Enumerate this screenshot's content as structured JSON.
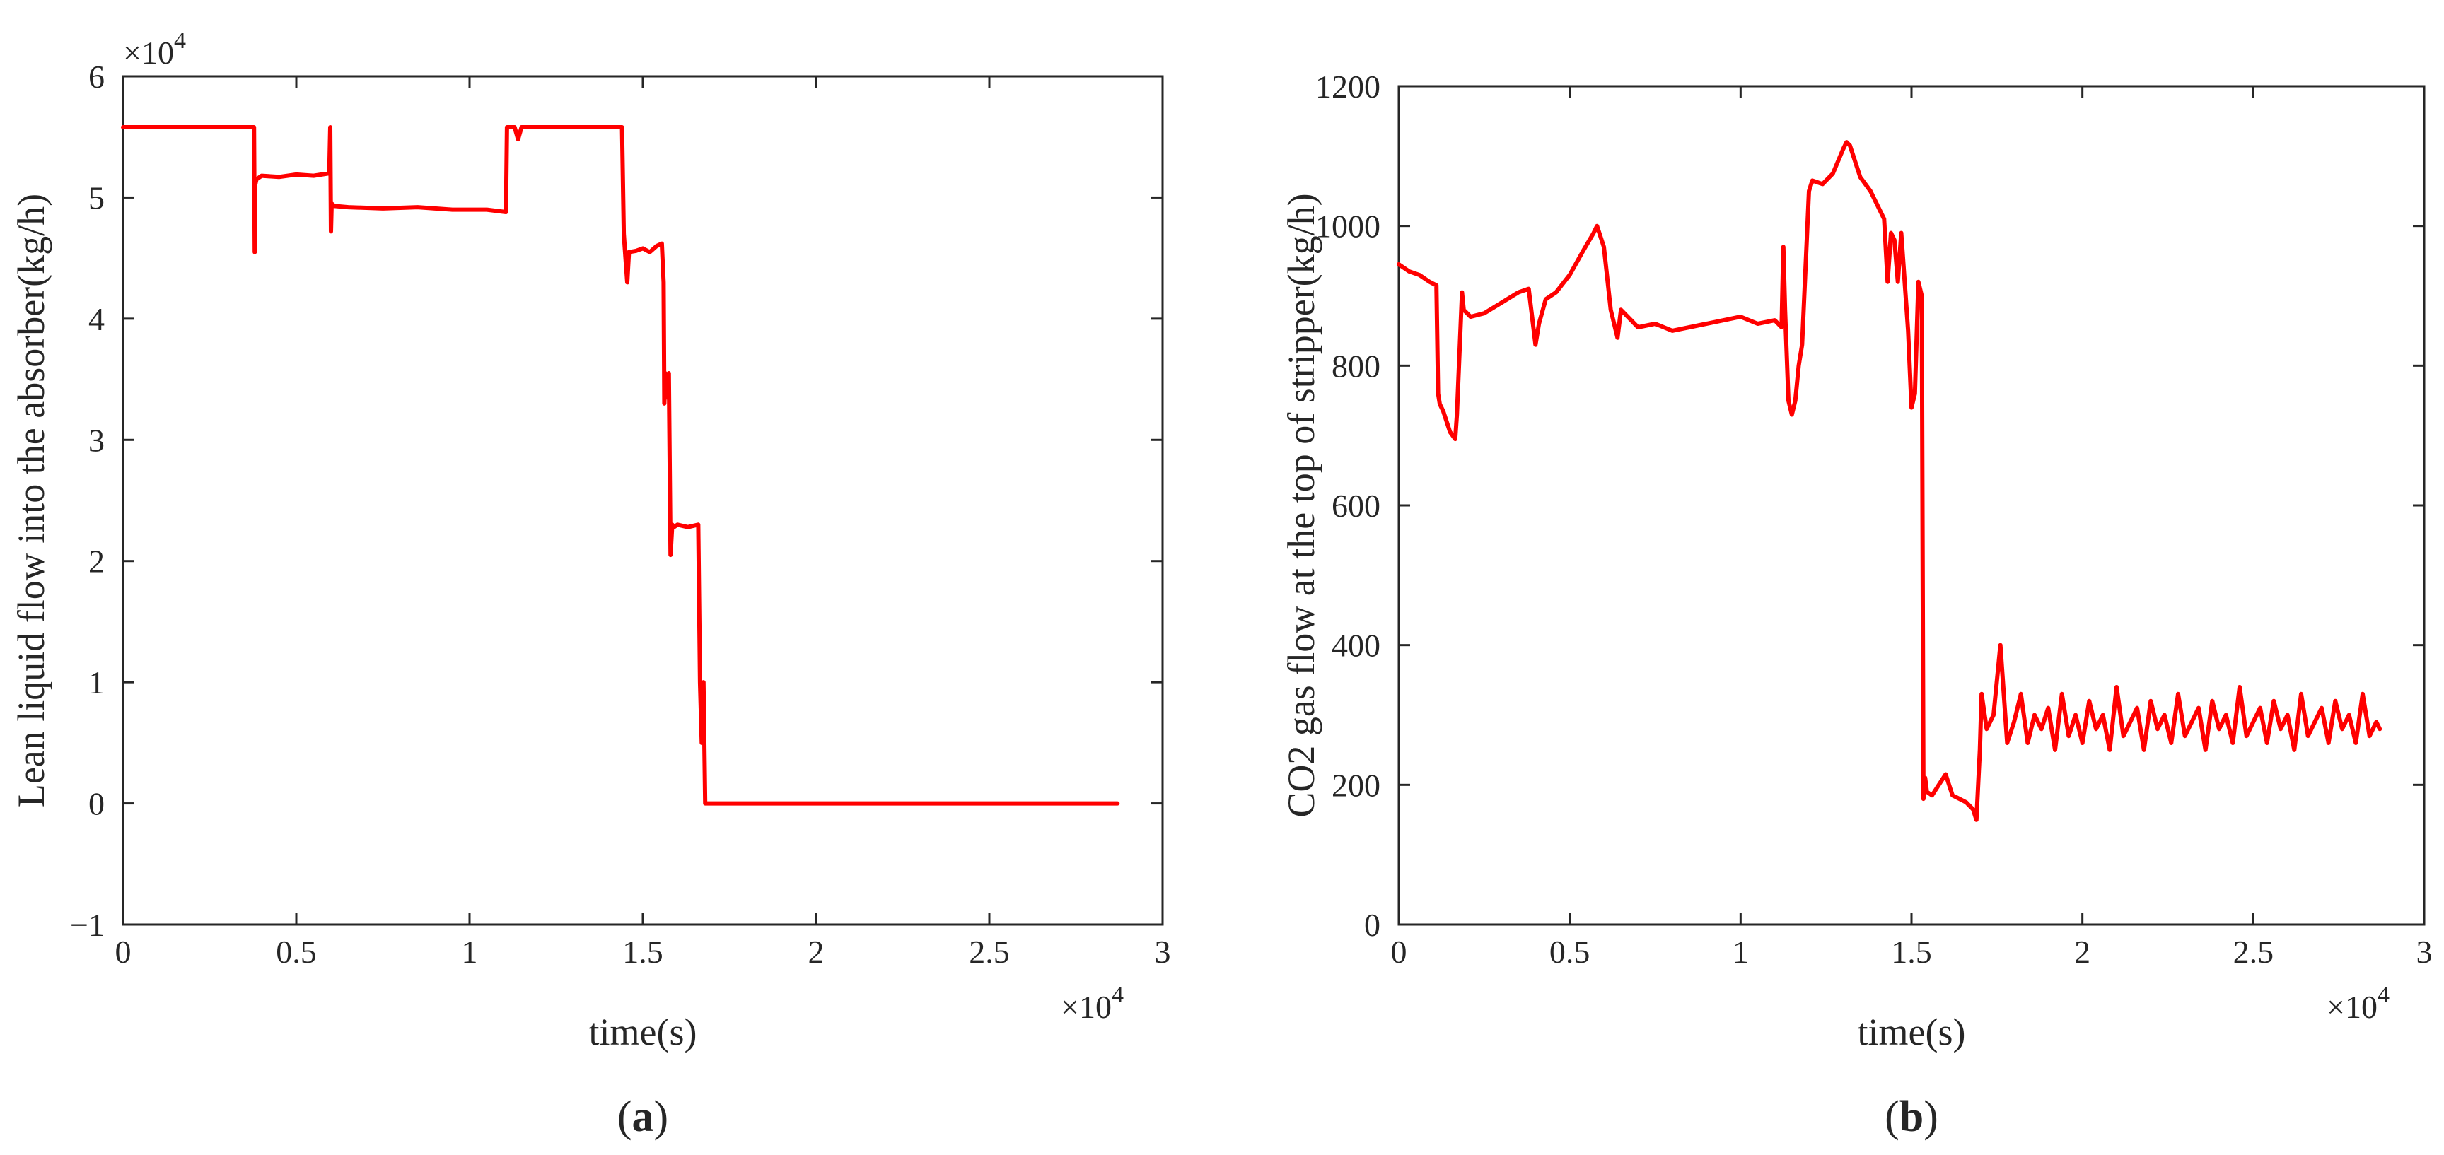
{
  "chart_data": [
    {
      "type": "line",
      "panel": "(a)",
      "caption": {
        "open": "(",
        "letter": "a",
        "close": ")"
      },
      "xlabel": "time(s)",
      "ylabel": "Lean liquid flow into the absorber(kg/h)",
      "x_exponent_label": "×10",
      "x_exponent_power": "4",
      "y_exponent_label": "×10",
      "y_exponent_power": "4",
      "xlim": [
        0,
        3
      ],
      "ylim": [
        -1,
        6
      ],
      "xticks": [
        0,
        0.5,
        1,
        1.5,
        2,
        2.5,
        3
      ],
      "xtick_labels": [
        "0",
        "0.5",
        "1",
        "1.5",
        "2",
        "2.5",
        "3"
      ],
      "yticks": [
        -1,
        0,
        1,
        2,
        3,
        4,
        5,
        6
      ],
      "ytick_labels": [
        "−1",
        "0",
        "1",
        "2",
        "3",
        "4",
        "5",
        "6"
      ],
      "grid": false,
      "color": "#ff0000",
      "series": [
        {
          "x": [
            0,
            0.378,
            0.38,
            0.381,
            0.385,
            0.4,
            0.45,
            0.5,
            0.55,
            0.595,
            0.598,
            0.6,
            0.602,
            0.61,
            0.65,
            0.75,
            0.85,
            0.95,
            1.05,
            1.105,
            1.108,
            1.11,
            1.13,
            1.14,
            1.15,
            1.25,
            1.35,
            1.44,
            1.445,
            1.45,
            1.455,
            1.46,
            1.48,
            1.5,
            1.52,
            1.54,
            1.555,
            1.56,
            1.562,
            1.565,
            1.57,
            1.575,
            1.58,
            1.585,
            1.59,
            1.6,
            1.63,
            1.66,
            1.665,
            1.67,
            1.675,
            1.68,
            1.685,
            1.69,
            1.8,
            2.0,
            2.3,
            2.6,
            2.87
          ],
          "y": [
            5.58,
            5.58,
            4.55,
            5.1,
            5.15,
            5.18,
            5.17,
            5.19,
            5.18,
            5.2,
            5.58,
            4.72,
            4.95,
            4.93,
            4.92,
            4.91,
            4.92,
            4.9,
            4.9,
            4.88,
            5.58,
            5.58,
            5.58,
            5.48,
            5.58,
            5.58,
            5.58,
            5.58,
            4.7,
            4.5,
            4.3,
            4.55,
            4.56,
            4.58,
            4.55,
            4.6,
            4.62,
            4.3,
            3.3,
            3.55,
            3.35,
            3.55,
            2.05,
            2.3,
            2.28,
            2.3,
            2.28,
            2.3,
            1.0,
            0.5,
            1.0,
            0.0,
            0.0,
            0.0,
            0.0,
            0.0,
            0.0,
            0.0,
            0.0
          ]
        }
      ]
    },
    {
      "type": "line",
      "panel": "(b)",
      "caption": {
        "open": "(",
        "letter": "b",
        "close": ")"
      },
      "xlabel": "time(s)",
      "ylabel": "CO2 gas flow at the top of stripper(kg/h)",
      "x_exponent_label": "×10",
      "x_exponent_power": "4",
      "xlim": [
        0,
        3
      ],
      "ylim": [
        0,
        1200
      ],
      "xticks": [
        0,
        0.5,
        1,
        1.5,
        2,
        2.5,
        3
      ],
      "xtick_labels": [
        "0",
        "0.5",
        "1",
        "1.5",
        "2",
        "2.5",
        "3"
      ],
      "yticks": [
        0,
        200,
        400,
        600,
        800,
        1000,
        1200
      ],
      "ytick_labels": [
        "0",
        "200",
        "400",
        "600",
        "800",
        "1000",
        "1200"
      ],
      "grid": false,
      "color": "#ff0000",
      "series": [
        {
          "x": [
            0,
            0.03,
            0.06,
            0.09,
            0.11,
            0.115,
            0.12,
            0.13,
            0.15,
            0.165,
            0.17,
            0.185,
            0.19,
            0.21,
            0.25,
            0.3,
            0.35,
            0.38,
            0.4,
            0.41,
            0.43,
            0.46,
            0.5,
            0.54,
            0.57,
            0.58,
            0.6,
            0.62,
            0.64,
            0.65,
            0.67,
            0.7,
            0.75,
            0.8,
            0.85,
            0.9,
            0.95,
            1.0,
            1.05,
            1.1,
            1.12,
            1.125,
            1.13,
            1.14,
            1.15,
            1.16,
            1.17,
            1.18,
            1.2,
            1.21,
            1.24,
            1.27,
            1.3,
            1.31,
            1.32,
            1.33,
            1.35,
            1.38,
            1.41,
            1.42,
            1.43,
            1.44,
            1.45,
            1.46,
            1.47,
            1.49,
            1.5,
            1.51,
            1.52,
            1.53,
            1.535,
            1.54,
            1.545,
            1.56,
            1.58,
            1.6,
            1.62,
            1.64,
            1.66,
            1.68,
            1.69,
            1.7,
            1.705,
            1.72,
            1.74,
            1.76,
            1.78,
            1.8,
            1.82,
            1.84,
            1.86,
            1.88,
            1.9,
            1.92,
            1.94,
            1.96,
            1.98,
            2.0,
            2.02,
            2.04,
            2.06,
            2.08,
            2.1,
            2.12,
            2.14,
            2.16,
            2.18,
            2.2,
            2.22,
            2.24,
            2.26,
            2.28,
            2.3,
            2.32,
            2.34,
            2.36,
            2.38,
            2.4,
            2.42,
            2.44,
            2.46,
            2.48,
            2.5,
            2.52,
            2.54,
            2.56,
            2.58,
            2.6,
            2.62,
            2.64,
            2.66,
            2.68,
            2.7,
            2.72,
            2.74,
            2.76,
            2.78,
            2.8,
            2.82,
            2.84,
            2.86,
            2.87
          ],
          "y": [
            945,
            935,
            930,
            920,
            915,
            760,
            745,
            735,
            705,
            695,
            730,
            905,
            880,
            870,
            875,
            890,
            905,
            910,
            830,
            860,
            895,
            905,
            930,
            965,
            990,
            1000,
            970,
            880,
            840,
            880,
            870,
            855,
            860,
            850,
            855,
            860,
            865,
            870,
            860,
            865,
            855,
            970,
            880,
            750,
            730,
            750,
            800,
            830,
            1050,
            1065,
            1060,
            1075,
            1110,
            1120,
            1115,
            1100,
            1070,
            1050,
            1020,
            1010,
            920,
            990,
            980,
            920,
            990,
            850,
            740,
            760,
            920,
            900,
            180,
            210,
            190,
            185,
            200,
            215,
            185,
            180,
            175,
            165,
            150,
            250,
            330,
            280,
            300,
            400,
            260,
            290,
            330,
            260,
            300,
            280,
            310,
            250,
            330,
            270,
            300,
            260,
            320,
            280,
            300,
            250,
            340,
            270,
            290,
            310,
            250,
            320,
            280,
            300,
            260,
            330,
            270,
            290,
            310,
            250,
            320,
            280,
            300,
            260,
            340,
            270,
            290,
            310,
            260,
            320,
            280,
            300,
            250,
            330,
            270,
            290,
            310,
            260,
            320,
            280,
            300,
            260,
            330,
            270,
            290,
            280
          ]
        }
      ]
    }
  ]
}
